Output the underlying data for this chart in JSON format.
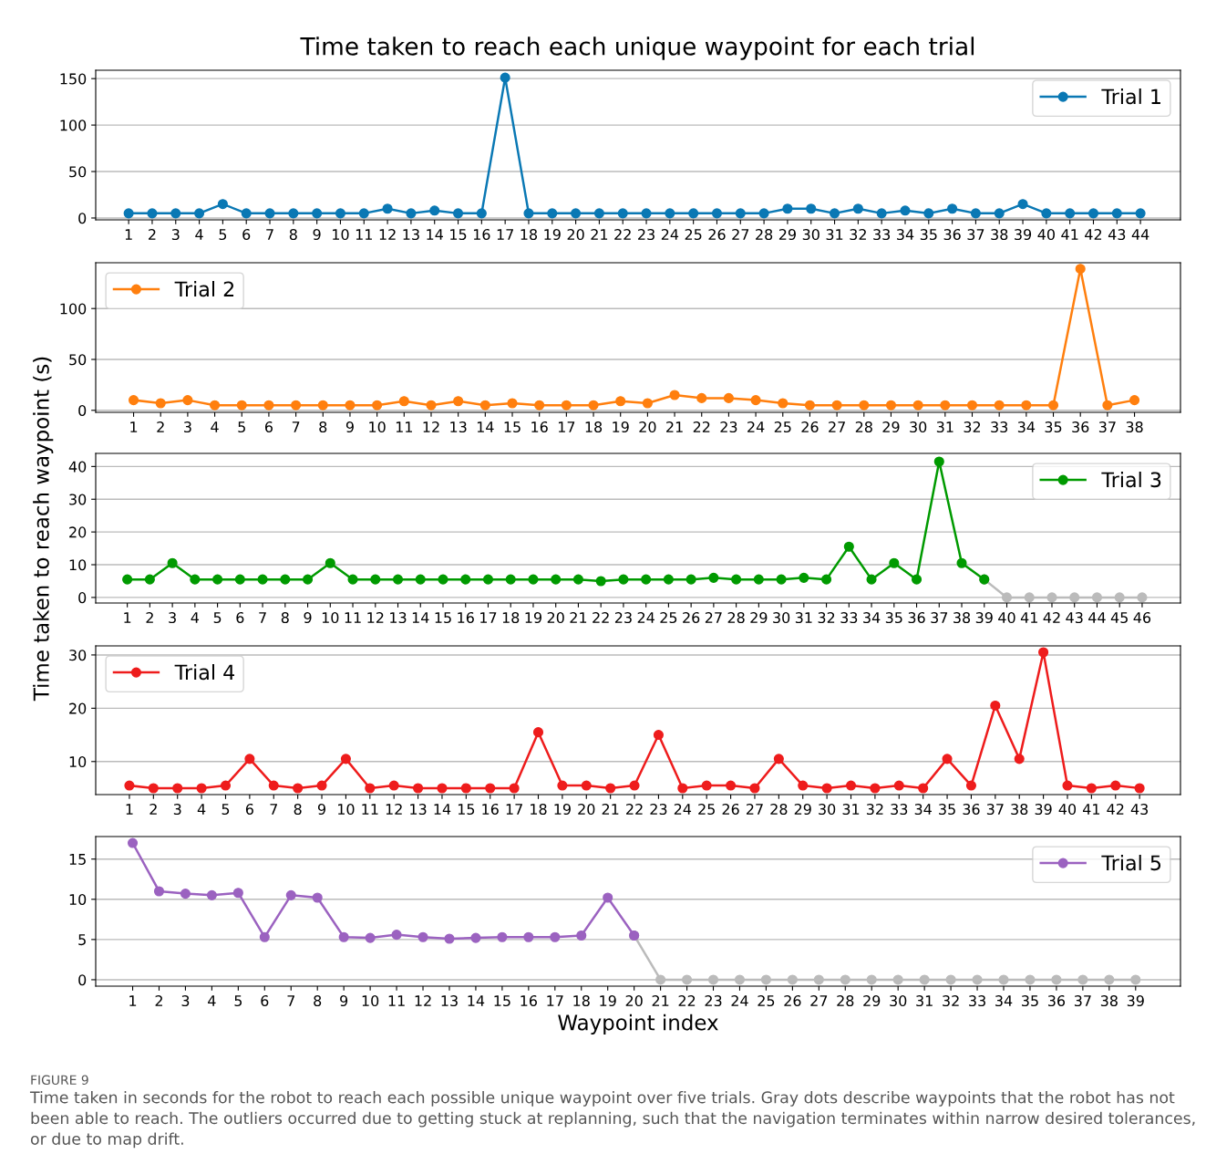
{
  "chart_data": [
    {
      "type": "line",
      "title": "Time taken to reach each unique waypoint for each trial",
      "categories": [
        "1",
        "2",
        "3",
        "4",
        "5",
        "6",
        "7",
        "8",
        "9",
        "10",
        "11",
        "12",
        "13",
        "14",
        "15",
        "16",
        "17",
        "18",
        "19",
        "20",
        "21",
        "22",
        "23",
        "24",
        "25",
        "26",
        "27",
        "28",
        "29",
        "30",
        "31",
        "32",
        "33",
        "34",
        "35",
        "36",
        "37",
        "38",
        "39",
        "40",
        "41",
        "42",
        "43",
        "44"
      ],
      "ylim": [
        -2,
        159
      ],
      "yticks": [
        0,
        50,
        100,
        150
      ],
      "grid": "y",
      "legend": "top right",
      "marker": "circle",
      "series": [
        {
          "name": "Trial 1",
          "color": "#0a78b4",
          "values": [
            5,
            5,
            5,
            5,
            15,
            5,
            5,
            5,
            5,
            5,
            5,
            10,
            5,
            8,
            5,
            5,
            151,
            5,
            5,
            5,
            5,
            5,
            5,
            5,
            5,
            5,
            5,
            5,
            10,
            10,
            5,
            10,
            5,
            8,
            5,
            10,
            5,
            5,
            15,
            5,
            5,
            5,
            5,
            5
          ]
        }
      ]
    },
    {
      "type": "line",
      "categories": [
        "1",
        "2",
        "3",
        "4",
        "5",
        "6",
        "7",
        "8",
        "9",
        "10",
        "11",
        "12",
        "13",
        "14",
        "15",
        "16",
        "17",
        "18",
        "19",
        "20",
        "21",
        "22",
        "23",
        "24",
        "25",
        "26",
        "27",
        "28",
        "29",
        "30",
        "31",
        "32",
        "33",
        "34",
        "35",
        "36",
        "37",
        "38"
      ],
      "ylim": [
        -2,
        145
      ],
      "yticks": [
        0,
        50,
        100
      ],
      "grid": "y",
      "legend": "top left",
      "marker": "circle",
      "series": [
        {
          "name": "Trial 2",
          "color": "#ff7f0e",
          "values": [
            10,
            7,
            10,
            5,
            5,
            5,
            5,
            5,
            5,
            5,
            9,
            5,
            9,
            5,
            7,
            5,
            5,
            5,
            9,
            7,
            15,
            12,
            12,
            10,
            7,
            5,
            5,
            5,
            5,
            5,
            5,
            5,
            5,
            5,
            5,
            139,
            5,
            10
          ]
        }
      ]
    },
    {
      "type": "line",
      "ylabel": "Time taken to reach waypoint (s)",
      "categories": [
        "1",
        "2",
        "3",
        "4",
        "5",
        "6",
        "7",
        "8",
        "9",
        "10",
        "11",
        "12",
        "13",
        "14",
        "15",
        "16",
        "17",
        "18",
        "19",
        "20",
        "21",
        "22",
        "23",
        "24",
        "25",
        "26",
        "27",
        "28",
        "29",
        "30",
        "31",
        "32",
        "33",
        "34",
        "35",
        "36",
        "37",
        "38",
        "39",
        "40",
        "41",
        "42",
        "43",
        "44",
        "45",
        "46"
      ],
      "ylim": [
        -1.7,
        44
      ],
      "yticks": [
        0,
        10,
        20,
        30,
        40
      ],
      "grid": "y",
      "legend": "top right",
      "marker": "circle",
      "series": [
        {
          "color": "#bbbbbb",
          "values": [
            null,
            null,
            null,
            null,
            null,
            null,
            null,
            null,
            null,
            null,
            null,
            null,
            null,
            null,
            null,
            null,
            null,
            null,
            null,
            null,
            null,
            null,
            null,
            null,
            null,
            null,
            null,
            null,
            null,
            null,
            null,
            null,
            null,
            null,
            null,
            null,
            null,
            null,
            5.5,
            0,
            0,
            0,
            0,
            0,
            0,
            0
          ]
        },
        {
          "name": "Trial 3",
          "color": "#009a00",
          "values": [
            5.5,
            5.5,
            10.5,
            5.5,
            5.5,
            5.5,
            5.5,
            5.5,
            5.5,
            10.5,
            5.5,
            5.5,
            5.5,
            5.5,
            5.5,
            5.5,
            5.5,
            5.5,
            5.5,
            5.5,
            5.5,
            5,
            5.5,
            5.5,
            5.5,
            5.5,
            6,
            5.5,
            5.5,
            5.5,
            6,
            5.5,
            15.5,
            5.5,
            10.5,
            5.5,
            41.5,
            10.5,
            5.5,
            null,
            null,
            null,
            null,
            null,
            null,
            null
          ]
        }
      ]
    },
    {
      "type": "line",
      "categories": [
        "1",
        "2",
        "3",
        "4",
        "5",
        "6",
        "7",
        "8",
        "9",
        "10",
        "11",
        "12",
        "13",
        "14",
        "15",
        "16",
        "17",
        "18",
        "19",
        "20",
        "21",
        "22",
        "23",
        "24",
        "25",
        "26",
        "27",
        "28",
        "29",
        "30",
        "31",
        "32",
        "33",
        "34",
        "35",
        "36",
        "37",
        "38",
        "39",
        "40",
        "41",
        "42",
        "43"
      ],
      "ylim": [
        3.8,
        31.7
      ],
      "yticks": [
        10,
        20,
        30
      ],
      "grid": "y",
      "legend": "top left",
      "marker": "circle",
      "series": [
        {
          "name": "Trial 4",
          "color": "#ee1c1c",
          "values": [
            5.5,
            5,
            5,
            5,
            5.5,
            10.5,
            5.5,
            5,
            5.5,
            10.5,
            5,
            5.5,
            5,
            5,
            5,
            5,
            5,
            15.5,
            5.5,
            5.5,
            5,
            5.5,
            15,
            5,
            5.5,
            5.5,
            5,
            10.5,
            5.5,
            5,
            5.5,
            5,
            5.5,
            5,
            10.5,
            5.5,
            20.5,
            10.5,
            30.5,
            5.5,
            5,
            5.5,
            5
          ]
        }
      ]
    },
    {
      "type": "line",
      "xlabel": "Waypoint index",
      "categories": [
        "1",
        "2",
        "3",
        "4",
        "5",
        "6",
        "7",
        "8",
        "9",
        "10",
        "11",
        "12",
        "13",
        "14",
        "15",
        "16",
        "17",
        "18",
        "19",
        "20",
        "21",
        "22",
        "23",
        "24",
        "25",
        "26",
        "27",
        "28",
        "29",
        "30",
        "31",
        "32",
        "33",
        "34",
        "35",
        "36",
        "37",
        "38",
        "39"
      ],
      "ylim": [
        -0.8,
        17.8
      ],
      "yticks": [
        0,
        5,
        10,
        15
      ],
      "grid": "y",
      "legend": "top right",
      "marker": "circle",
      "annotations": [
        "FIGURE 9",
        "Time taken in seconds for the robot to reach each possible unique waypoint over five trials. Gray dots describe waypoints that the robot has not been able to reach. The outliers occurred due to getting stuck at replanning, such that the navigation terminates within narrow desired tolerances, or due to map drift."
      ],
      "series": [
        {
          "color": "#bbbbbb",
          "values": [
            null,
            null,
            null,
            null,
            null,
            null,
            null,
            null,
            null,
            null,
            null,
            null,
            null,
            null,
            null,
            null,
            null,
            null,
            null,
            5.5,
            0,
            0,
            0,
            0,
            0,
            0,
            0,
            0,
            0,
            0,
            0,
            0,
            0,
            0,
            0,
            0,
            0,
            0,
            0
          ]
        },
        {
          "name": "Trial 5",
          "color": "#9b62c0",
          "values": [
            17,
            11,
            10.7,
            10.5,
            10.8,
            5.3,
            10.5,
            10.2,
            5.3,
            5.2,
            5.6,
            5.3,
            5.1,
            5.2,
            5.3,
            5.3,
            5.3,
            5.5,
            10.2,
            5.5,
            null,
            null,
            null,
            null,
            null,
            null,
            null,
            null,
            null,
            null,
            null,
            null,
            null,
            null,
            null,
            null,
            null,
            null,
            null
          ]
        }
      ]
    }
  ]
}
